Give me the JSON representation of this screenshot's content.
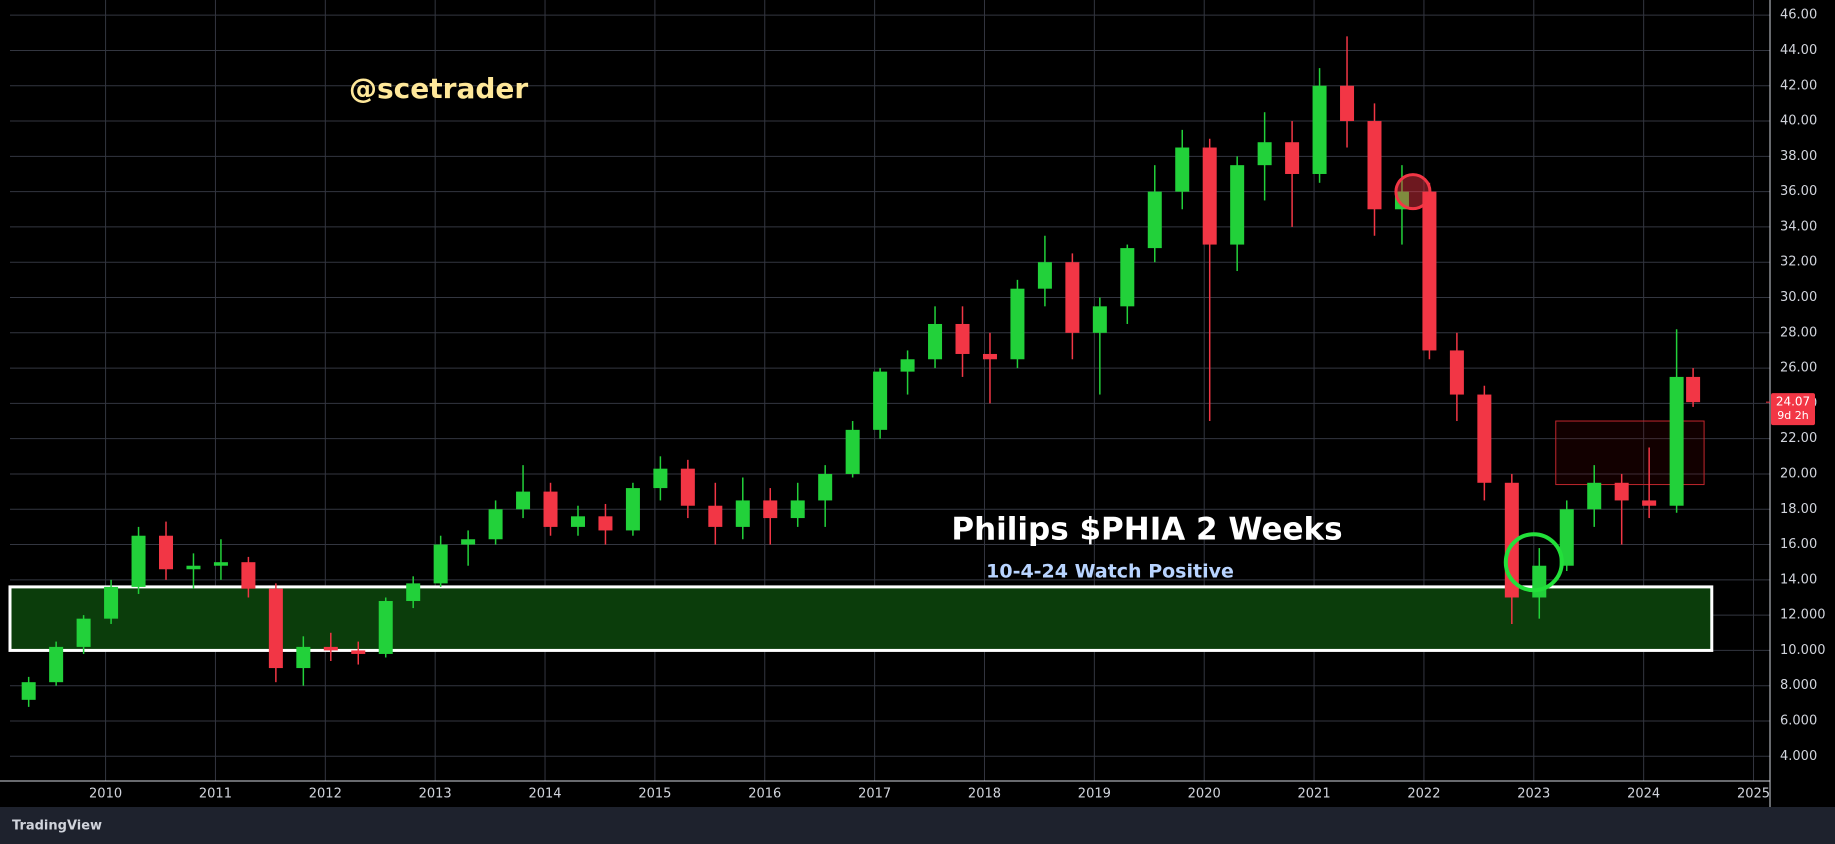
{
  "chart_data": {
    "type": "candlestick",
    "title": "Philips $PHIA 2 Weeks",
    "subtitle": "10-4-24 Watch Positive",
    "watermark": "@scetrader",
    "brand": "TradingView",
    "countdown": "9d 2h",
    "up_color": "#22d13a",
    "down_color": "#f23645",
    "grid": true,
    "x": [
      2009.3,
      2009.55,
      2009.8,
      2010.05,
      2010.3,
      2010.55,
      2010.8,
      2011.05,
      2011.3,
      2011.55,
      2011.8,
      2012.05,
      2012.3,
      2012.55,
      2012.8,
      2013.05,
      2013.3,
      2013.55,
      2013.8,
      2014.05,
      2014.3,
      2014.55,
      2014.8,
      2015.05,
      2015.3,
      2015.55,
      2015.8,
      2016.05,
      2016.3,
      2016.55,
      2016.8,
      2017.05,
      2017.3,
      2017.55,
      2017.8,
      2018.05,
      2018.3,
      2018.55,
      2018.8,
      2019.05,
      2019.3,
      2019.55,
      2019.8,
      2020.05,
      2020.3,
      2020.55,
      2020.8,
      2021.05,
      2021.3,
      2021.55,
      2021.8,
      2022.05,
      2022.3,
      2022.55,
      2022.8,
      2023.05,
      2023.3,
      2023.55,
      2023.8,
      2024.05,
      2024.3,
      2024.45
    ],
    "open": [
      7.2,
      8.2,
      10.2,
      11.8,
      13.6,
      16.5,
      14.6,
      14.8,
      15,
      13.5,
      9,
      10.2,
      10,
      9.8,
      12.8,
      13.8,
      16,
      16.3,
      18,
      19,
      17,
      17.6,
      16.8,
      19.2,
      20.3,
      18.2,
      17,
      18.5,
      17.5,
      18.5,
      20,
      22.5,
      25.8,
      26.5,
      28.5,
      26.8,
      26.5,
      30.5,
      32,
      28,
      29.5,
      32.8,
      36,
      38.5,
      33,
      37.5,
      38.8,
      37,
      42,
      40,
      35,
      36,
      27,
      24.5,
      19.5,
      13,
      14.8,
      18,
      19.5,
      18.5,
      18.2,
      25.5
    ],
    "high": [
      8.5,
      10.5,
      12,
      14,
      17,
      17.3,
      15.5,
      16.3,
      15.3,
      13.8,
      10.8,
      11,
      10.5,
      13,
      14.2,
      16.5,
      16.8,
      18.5,
      20.5,
      19.5,
      18.2,
      18.3,
      19.5,
      21,
      20.8,
      19.5,
      19.8,
      19.2,
      19.5,
      20.5,
      23,
      26,
      27,
      29.5,
      29.5,
      28,
      31,
      33.5,
      32.5,
      30,
      33,
      37.5,
      39.5,
      39,
      38,
      40.5,
      40,
      43,
      44.8,
      41,
      37.5,
      36.5,
      28,
      25,
      20,
      15.8,
      18.5,
      20.5,
      20,
      21.5,
      28.2,
      26
    ],
    "low": [
      6.8,
      8,
      9.8,
      11.5,
      13.2,
      14,
      13.5,
      14,
      13,
      8.2,
      8,
      9.4,
      9.2,
      9.6,
      12.4,
      13.6,
      14.8,
      16,
      17.5,
      16.5,
      16.5,
      16,
      16.5,
      18.5,
      17.5,
      16,
      16.3,
      16,
      17,
      17,
      19.8,
      22,
      24.5,
      26,
      25.5,
      24,
      26,
      29.5,
      26.5,
      24.5,
      28.5,
      32,
      35,
      23,
      31.5,
      35.5,
      34,
      36.5,
      38.5,
      33.5,
      33,
      26.5,
      23,
      18.5,
      11.5,
      11.8,
      14.5,
      17,
      16,
      17.5,
      17.8,
      23.8
    ],
    "close": [
      8.2,
      10.2,
      11.8,
      13.6,
      16.5,
      14.6,
      14.8,
      15,
      13.5,
      9,
      10.2,
      10,
      9.8,
      12.8,
      13.8,
      16,
      16.3,
      18,
      19,
      17,
      17.6,
      16.8,
      19.2,
      20.3,
      18.2,
      17,
      18.5,
      17.5,
      18.5,
      20,
      22.5,
      25.8,
      26.5,
      28.5,
      26.8,
      26.5,
      30.5,
      32,
      28,
      29.5,
      32.8,
      36,
      38.5,
      33,
      37.5,
      38.8,
      37,
      42,
      40,
      35,
      36,
      27,
      24.5,
      19.5,
      13,
      14.8,
      18,
      19.5,
      18.5,
      18.2,
      25.5,
      24.07
    ],
    "price_tag": {
      "value": 24.07,
      "label": "24.07"
    },
    "xlim": [
      2009.13,
      2025.15
    ],
    "ylim": [
      2.6,
      46.86
    ],
    "xticks": [
      2010,
      2011,
      2012,
      2013,
      2014,
      2015,
      2016,
      2017,
      2018,
      2019,
      2020,
      2021,
      2022,
      2023,
      2024,
      2025
    ],
    "yticks": [
      {
        "value": 4,
        "label": "4.000"
      },
      {
        "value": 6,
        "label": "6.000"
      },
      {
        "value": 8,
        "label": "8.000"
      },
      {
        "value": 10,
        "label": "10.000"
      },
      {
        "value": 12,
        "label": "12.000"
      },
      {
        "value": 14,
        "label": "14.00"
      },
      {
        "value": 16,
        "label": "16.00"
      },
      {
        "value": 18,
        "label": "18.00"
      },
      {
        "value": 20,
        "label": "20.00"
      },
      {
        "value": 22,
        "label": "22.00"
      },
      {
        "value": 24,
        "label": "24.00"
      },
      {
        "value": 26,
        "label": "26.00"
      },
      {
        "value": 28,
        "label": "28.00"
      },
      {
        "value": 30,
        "label": "30.00"
      },
      {
        "value": 32,
        "label": "32.00"
      },
      {
        "value": 34,
        "label": "34.00"
      },
      {
        "value": 36,
        "label": "36.00"
      },
      {
        "value": 38,
        "label": "38.00"
      },
      {
        "value": 40,
        "label": "40.00"
      },
      {
        "value": 42,
        "label": "42.00"
      },
      {
        "value": 44,
        "label": "44.00"
      },
      {
        "value": 46,
        "label": "46.00"
      }
    ],
    "support_zone": {
      "xlim": [
        2009.13,
        2024.62
      ],
      "ylim": [
        10,
        13.6
      ],
      "color": "#0b3d0b"
    },
    "resistance_box": {
      "xlim": [
        2023.2,
        2024.55
      ],
      "ylim": [
        19.4,
        23
      ],
      "color": "#c0262d"
    },
    "markers": [
      {
        "x": 2021.9,
        "y": 36,
        "color": "#f23645"
      },
      {
        "x": 2023.0,
        "y": 15,
        "color": "#22e03a"
      }
    ]
  }
}
